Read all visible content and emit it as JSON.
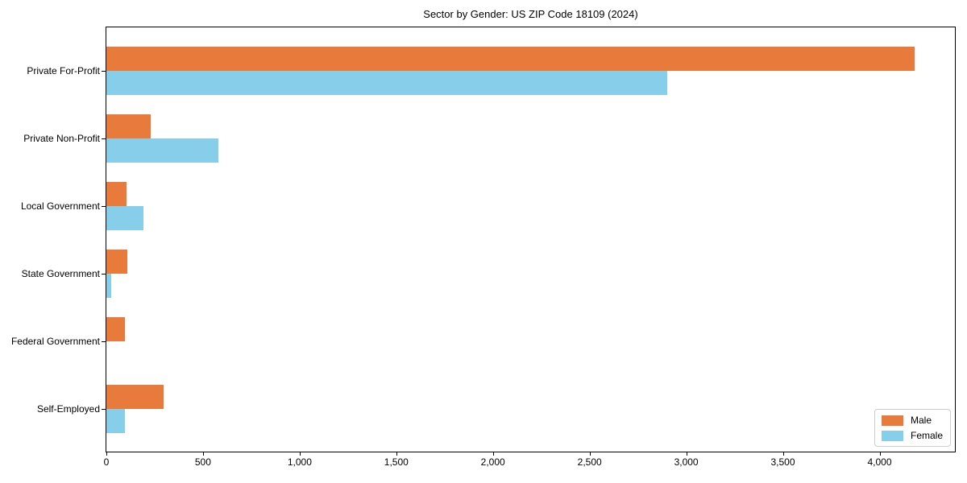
{
  "chart_data": {
    "type": "bar",
    "orientation": "horizontal",
    "title": "Sector by Gender: US ZIP Code 18109 (2024)",
    "categories": [
      "Private For-Profit",
      "Private Non-Profit",
      "Local Government",
      "State Government",
      "Federal Government",
      "Self-Employed"
    ],
    "series": [
      {
        "name": "Male",
        "color": "#e87a3c",
        "values": [
          4180,
          230,
          105,
          110,
          95,
          295
        ]
      },
      {
        "name": "Female",
        "color": "#87ceeb",
        "values": [
          2900,
          580,
          190,
          25,
          0,
          95
        ]
      }
    ],
    "xlabel": "",
    "ylabel": "",
    "xlim": [
      0,
      4390
    ],
    "xticks": [
      0,
      500,
      1000,
      1500,
      2000,
      2500,
      3000,
      3500,
      4000
    ],
    "xtick_labels": [
      "0",
      "500",
      "1,000",
      "1,500",
      "2,000",
      "2,500",
      "3,000",
      "3,500",
      "4,000"
    ],
    "grid": false,
    "legend": {
      "position": "lower right",
      "entries": [
        "Male",
        "Female"
      ]
    },
    "colors": {
      "axis": "#000000",
      "background": "#ffffff",
      "legend_border": "#cccccc"
    }
  }
}
